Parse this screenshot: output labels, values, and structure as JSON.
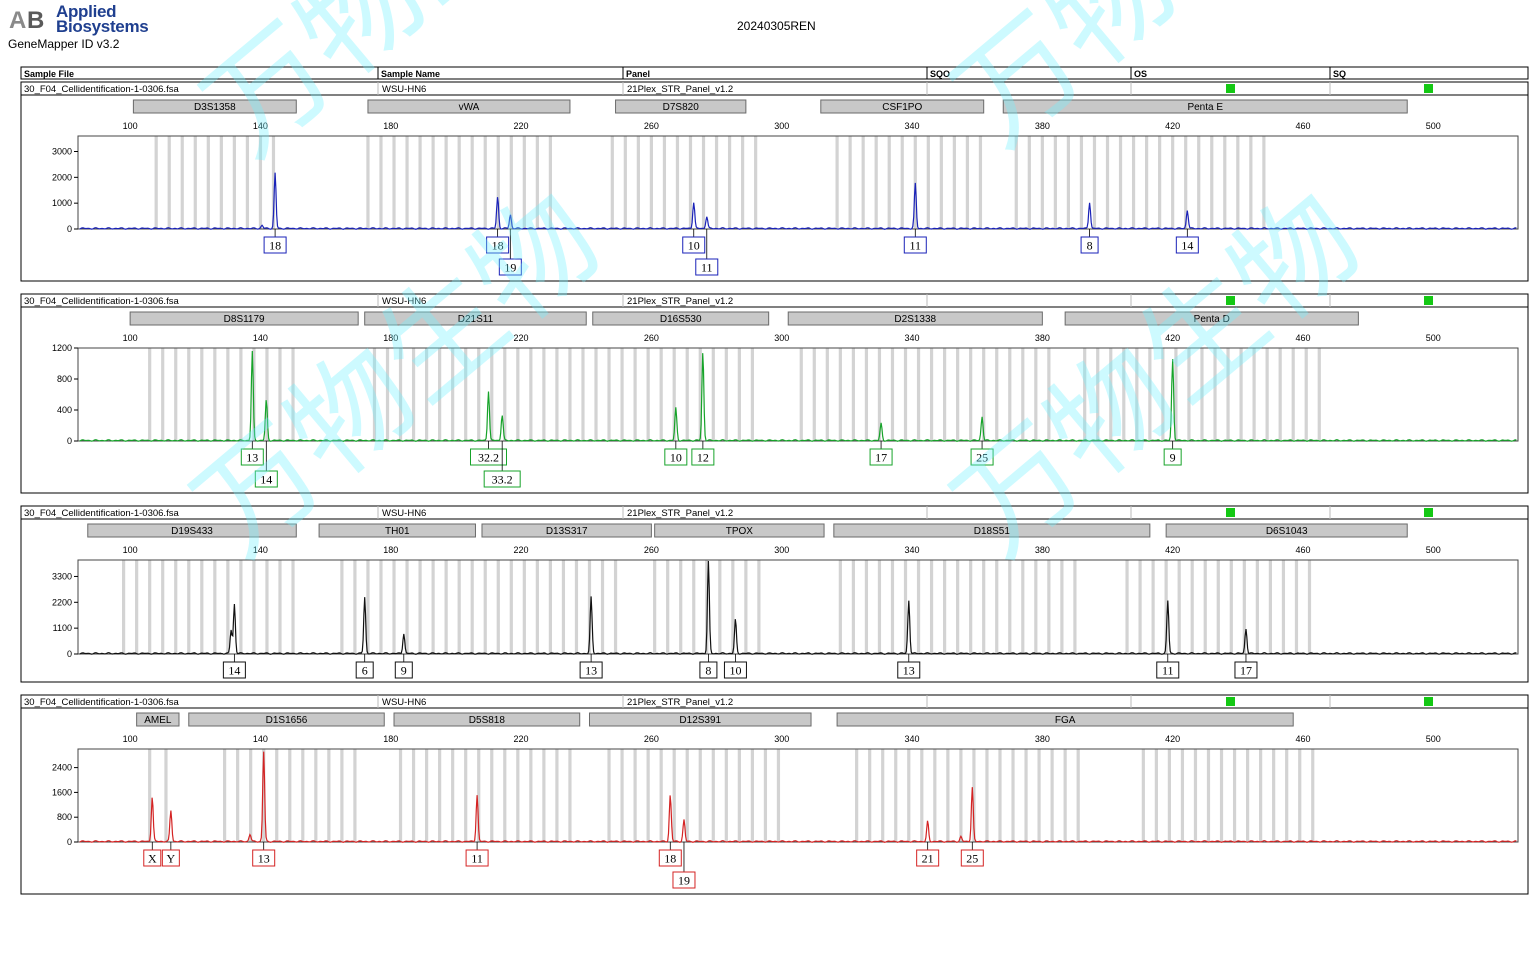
{
  "brand": {
    "line1": "Applied",
    "line2": "Biosystems",
    "app_version": "GeneMapper ID v3.2"
  },
  "run_title": "20240305REN",
  "header": {
    "columns": [
      "Sample File",
      "Sample Name",
      "Panel",
      "SQO",
      "OS",
      "SQ"
    ]
  },
  "watermark": "万物生物",
  "colors": {
    "blue": "#1a22b8",
    "green": "#17a32a",
    "black": "#111111",
    "red": "#d42323",
    "quality_ok": "#14c814",
    "bin_gray": "#d3d3d3"
  },
  "chart_data": [
    {
      "type": "line",
      "dye": "blue",
      "sample_file": "30_F04_Cellidentification-1-0306.fsa",
      "sample_name": "WSU-HN6",
      "panel": "21Plex_STR_Panel_v1.2",
      "quality": {
        "os": "green",
        "sq": "green"
      },
      "xlim": [
        84,
        526
      ],
      "x_ticks": [
        100,
        140,
        180,
        220,
        260,
        300,
        340,
        380,
        420,
        460,
        500
      ],
      "ylim": [
        0,
        3600
      ],
      "y_ticks": [
        0,
        1000,
        2000,
        3000
      ],
      "markers": [
        {
          "name": "D3S1358",
          "start": 101,
          "end": 151
        },
        {
          "name": "vWA",
          "start": 173,
          "end": 235
        },
        {
          "name": "D7S820",
          "start": 249,
          "end": 289
        },
        {
          "name": "CSF1PO",
          "start": 312,
          "end": 362
        },
        {
          "name": "Penta E",
          "start": 368,
          "end": 492
        }
      ],
      "bin_ranges": [
        [
          108,
          144
        ],
        [
          173,
          232
        ],
        [
          248,
          293
        ],
        [
          317,
          361
        ],
        [
          372,
          448
        ]
      ],
      "peaks": [
        {
          "x": 144.5,
          "height": 2150,
          "label": "18",
          "row": 0
        },
        {
          "x": 140.5,
          "height": 120
        },
        {
          "x": 212.8,
          "height": 1220,
          "label": "18",
          "row": 0
        },
        {
          "x": 216.7,
          "height": 540,
          "label": "19",
          "row": 1
        },
        {
          "x": 273.0,
          "height": 1020,
          "label": "10",
          "row": 0
        },
        {
          "x": 277.0,
          "height": 470,
          "label": "11",
          "row": 1
        },
        {
          "x": 341.0,
          "height": 1740,
          "label": "11",
          "row": 0
        },
        {
          "x": 394.5,
          "height": 1020,
          "label": "8",
          "row": 0
        },
        {
          "x": 424.5,
          "height": 710,
          "label": "14",
          "row": 0
        }
      ]
    },
    {
      "type": "line",
      "dye": "green",
      "sample_file": "30_F04_Cellidentification-1-0306.fsa",
      "sample_name": "WSU-HN6",
      "panel": "21Plex_STR_Panel_v1.2",
      "quality": {
        "os": "green",
        "sq": "green"
      },
      "xlim": [
        84,
        526
      ],
      "x_ticks": [
        100,
        140,
        180,
        220,
        260,
        300,
        340,
        380,
        420,
        460,
        500
      ],
      "ylim": [
        0,
        1200
      ],
      "y_ticks": [
        0,
        400,
        800,
        1200
      ],
      "markers": [
        {
          "name": "D8S1179",
          "start": 100,
          "end": 170
        },
        {
          "name": "D21S11",
          "start": 172,
          "end": 240
        },
        {
          "name": "D16S530",
          "start": 242,
          "end": 296
        },
        {
          "name": "D2S1338",
          "start": 302,
          "end": 380
        },
        {
          "name": "Penta D",
          "start": 387,
          "end": 477
        }
      ],
      "bin_ranges": [
        [
          106,
          150
        ],
        [
          175,
          240
        ],
        [
          243,
          293
        ],
        [
          306,
          383
        ],
        [
          393,
          466
        ]
      ],
      "peaks": [
        {
          "x": 137.5,
          "height": 1150,
          "label": "13",
          "row": 0
        },
        {
          "x": 141.8,
          "height": 520,
          "label": "14",
          "row": 1
        },
        {
          "x": 210.0,
          "height": 640,
          "label": "32.2",
          "row": 0
        },
        {
          "x": 214.2,
          "height": 330,
          "label": "33.2",
          "row": 1
        },
        {
          "x": 267.5,
          "height": 420,
          "label": "10",
          "row": 0
        },
        {
          "x": 275.8,
          "height": 1140,
          "label": "12",
          "row": 0
        },
        {
          "x": 330.5,
          "height": 220,
          "label": "17",
          "row": 0
        },
        {
          "x": 361.5,
          "height": 310,
          "label": "25",
          "row": 0
        },
        {
          "x": 420.0,
          "height": 1050,
          "label": "9",
          "row": 0
        }
      ]
    },
    {
      "type": "line",
      "dye": "black",
      "sample_file": "30_F04_Cellidentification-1-0306.fsa",
      "sample_name": "WSU-HN6",
      "panel": "21Plex_STR_Panel_v1.2",
      "quality": {
        "os": "green",
        "sq": "green"
      },
      "xlim": [
        84,
        526
      ],
      "x_ticks": [
        100,
        140,
        180,
        220,
        260,
        300,
        340,
        380,
        420,
        460,
        500
      ],
      "ylim": [
        0,
        4000
      ],
      "y_ticks": [
        0,
        1100,
        2200,
        3300
      ],
      "markers": [
        {
          "name": "D19S433",
          "start": 87,
          "end": 151
        },
        {
          "name": "TH01",
          "start": 158,
          "end": 206
        },
        {
          "name": "D13S317",
          "start": 208,
          "end": 260
        },
        {
          "name": "TPOX",
          "start": 261,
          "end": 313
        },
        {
          "name": "D18S51",
          "start": 316,
          "end": 413
        },
        {
          "name": "D6S1043",
          "start": 418,
          "end": 492
        }
      ],
      "bin_ranges": [
        [
          98,
          150
        ],
        [
          165,
          203
        ],
        [
          205,
          251
        ],
        [
          261,
          295
        ],
        [
          318,
          393
        ],
        [
          406,
          465
        ]
      ],
      "peaks": [
        {
          "x": 131.0,
          "height": 1000
        },
        {
          "x": 132.0,
          "height": 2100,
          "label": "14",
          "row": 0
        },
        {
          "x": 172.0,
          "height": 2400,
          "label": "6",
          "row": 0
        },
        {
          "x": 184.0,
          "height": 850,
          "label": "9",
          "row": 0
        },
        {
          "x": 241.5,
          "height": 2400,
          "label": "13",
          "row": 0
        },
        {
          "x": 277.5,
          "height": 3950,
          "label": "8",
          "row": 0
        },
        {
          "x": 285.8,
          "height": 1450,
          "label": "10",
          "row": 0
        },
        {
          "x": 339.0,
          "height": 2250,
          "label": "13",
          "row": 0
        },
        {
          "x": 418.5,
          "height": 2250,
          "label": "11",
          "row": 0
        },
        {
          "x": 442.5,
          "height": 1050,
          "label": "17",
          "row": 0
        }
      ]
    },
    {
      "type": "line",
      "dye": "red",
      "sample_file": "30_F04_Cellidentification-1-0306.fsa",
      "sample_name": "WSU-HN6",
      "panel": "21Plex_STR_Panel_v1.2",
      "quality": {
        "os": "green",
        "sq": "green"
      },
      "xlim": [
        84,
        526
      ],
      "x_ticks": [
        100,
        140,
        180,
        220,
        260,
        300,
        340,
        380,
        420,
        460,
        500
      ],
      "ylim": [
        0,
        3000
      ],
      "y_ticks": [
        0,
        800,
        1600,
        2400
      ],
      "markers": [
        {
          "name": "AMEL",
          "start": 102,
          "end": 115
        },
        {
          "name": "D1S1656",
          "start": 118,
          "end": 178
        },
        {
          "name": "D5S818",
          "start": 181,
          "end": 238
        },
        {
          "name": "D12S391",
          "start": 241,
          "end": 309
        },
        {
          "name": "FGA",
          "start": 317,
          "end": 457
        }
      ],
      "bin_ranges": [
        [
          106,
          108
        ],
        [
          111,
          113
        ],
        [
          129,
          172
        ],
        [
          183,
          236
        ],
        [
          247,
          300
        ],
        [
          323,
          394
        ],
        [
          411,
          464
        ]
      ],
      "peaks": [
        {
          "x": 106.8,
          "height": 1450,
          "label": "X",
          "row": 0
        },
        {
          "x": 112.5,
          "height": 1000,
          "label": "Y",
          "row": 0
        },
        {
          "x": 136.8,
          "height": 230
        },
        {
          "x": 141.0,
          "height": 2900,
          "label": "13",
          "row": 0
        },
        {
          "x": 206.5,
          "height": 1500,
          "label": "11",
          "row": 0
        },
        {
          "x": 265.8,
          "height": 1500,
          "label": "18",
          "row": 0
        },
        {
          "x": 270.0,
          "height": 700,
          "label": "19",
          "row": 1
        },
        {
          "x": 344.8,
          "height": 650,
          "label": "21",
          "row": 0
        },
        {
          "x": 358.5,
          "height": 1750,
          "label": "25",
          "row": 0
        },
        {
          "x": 355.0,
          "height": 150
        }
      ]
    }
  ]
}
